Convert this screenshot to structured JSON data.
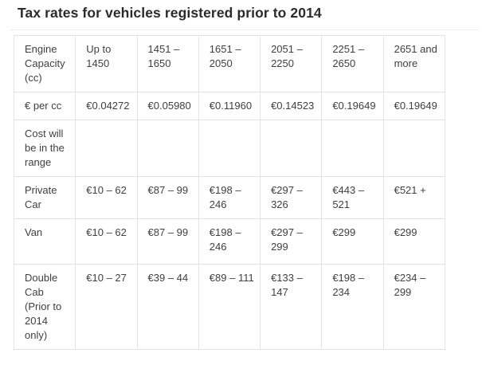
{
  "page": {
    "title": "Tax rates for vehicles registered prior to 2014"
  },
  "table": {
    "columns": [
      "Engine Capacity (cc)",
      "Up to 1450",
      "1451 – 1650",
      "1651 – 2050",
      "2051 – 2250",
      "2251 – 2650",
      "2651 and more"
    ],
    "rows": [
      [
        "€ per cc",
        "€0.04272",
        "€0.05980",
        "€0.11960",
        "€0.14523",
        "€0.19649",
        "€0.19649"
      ],
      [
        "Cost will be in the range",
        "",
        "",
        "",
        "",
        "",
        ""
      ],
      [
        "Private Car",
        "€10 – 62",
        "€87 – 99",
        "€198 – 246",
        "€297 – 326",
        "€443 – 521",
        "€521 +"
      ],
      [
        "Van",
        "€10 – 62",
        "€87 – 99",
        "€198 – 246",
        "€297 – 299",
        "€299",
        "€299"
      ],
      [
        "Double Cab (Prior to 2014 only)",
        "€10 – 27",
        "€39 – 44",
        "€89 – 111",
        "€133 – 147",
        "€198 – 234",
        "€234 – 299"
      ]
    ]
  },
  "colors": {
    "background": "#ffffff",
    "title_text": "#2b2b2b",
    "body_text": "#3f3f3f",
    "table_border": "#e2e2e2",
    "title_divider": "#ececec"
  }
}
